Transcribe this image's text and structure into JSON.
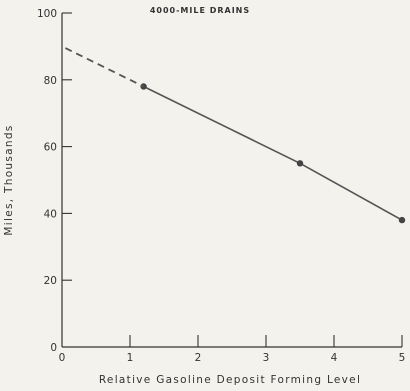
{
  "chart_data": {
    "type": "line",
    "title": "4000-MILE DRAINS",
    "xlabel": "Relative Gasoline Deposit Forming Level",
    "ylabel": "Miles, Thousands",
    "xlim": [
      0,
      5
    ],
    "ylim": [
      0,
      100
    ],
    "x_ticks": [
      "0",
      "1",
      "2",
      "3",
      "4",
      "5"
    ],
    "y_ticks": [
      "0",
      "20",
      "40",
      "60",
      "80",
      "100"
    ],
    "grid": false,
    "series": [
      {
        "style": "solid",
        "markers": true,
        "points": [
          {
            "x": 1.2,
            "y": 78
          },
          {
            "x": 3.5,
            "y": 55
          },
          {
            "x": 5.0,
            "y": 38
          }
        ]
      },
      {
        "style": "dashed",
        "markers": false,
        "points": [
          {
            "x": 0.05,
            "y": 89.5
          },
          {
            "x": 1.2,
            "y": 78
          }
        ]
      }
    ],
    "colors": {
      "line": "#555555",
      "marker": "#444444",
      "axis": "#333333"
    }
  }
}
